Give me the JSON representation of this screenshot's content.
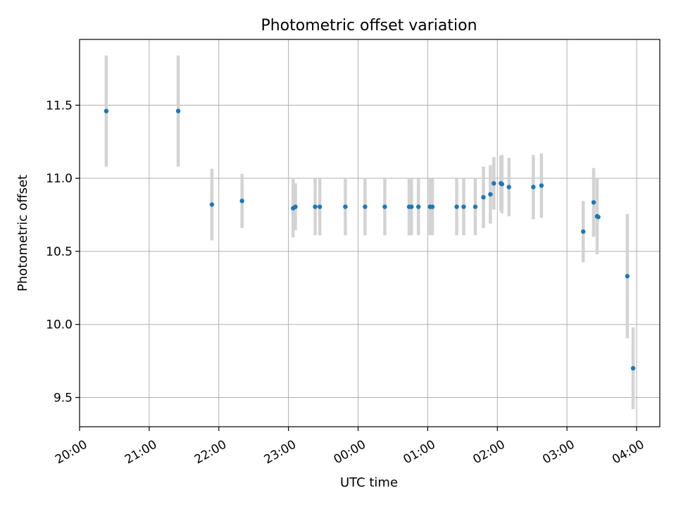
{
  "chart_data": {
    "type": "scatter",
    "title": "Photometric offset variation",
    "xlabel": "UTC time",
    "ylabel": "Photometric offset",
    "x_tick_labels": [
      "20:00",
      "21:00",
      "22:00",
      "23:00",
      "00:00",
      "01:00",
      "02:00",
      "03:00",
      "04:00"
    ],
    "y_tick_labels": [
      "9.5",
      "10.0",
      "10.5",
      "11.0",
      "11.5"
    ],
    "xlim": [
      "20:00",
      "04:20"
    ],
    "ylim": [
      9.3,
      11.95
    ],
    "grid": true,
    "marker_color": "#1f77b4",
    "errorbar_color": "#d3d3d3",
    "points": [
      {
        "x": "20:23",
        "y": 11.46,
        "err": 0.38
      },
      {
        "x": "21:25",
        "y": 11.46,
        "err": 0.38
      },
      {
        "x": "21:54",
        "y": 10.82,
        "err": 0.245
      },
      {
        "x": "22:20",
        "y": 10.845,
        "err": 0.185
      },
      {
        "x": "23:04",
        "y": 10.795,
        "err": 0.2
      },
      {
        "x": "23:06",
        "y": 10.805,
        "err": 0.16
      },
      {
        "x": "23:23",
        "y": 10.805,
        "err": 0.195
      },
      {
        "x": "23:27",
        "y": 10.805,
        "err": 0.195
      },
      {
        "x": "23:49",
        "y": 10.805,
        "err": 0.195
      },
      {
        "x": "00:06",
        "y": 10.805,
        "err": 0.195
      },
      {
        "x": "00:23",
        "y": 10.805,
        "err": 0.195
      },
      {
        "x": "00:44",
        "y": 10.805,
        "err": 0.195
      },
      {
        "x": "00:46",
        "y": 10.805,
        "err": 0.195
      },
      {
        "x": "00:52",
        "y": 10.805,
        "err": 0.195
      },
      {
        "x": "01:02",
        "y": 10.805,
        "err": 0.195
      },
      {
        "x": "01:04",
        "y": 10.805,
        "err": 0.195
      },
      {
        "x": "01:25",
        "y": 10.805,
        "err": 0.195
      },
      {
        "x": "01:31",
        "y": 10.805,
        "err": 0.195
      },
      {
        "x": "01:41",
        "y": 10.805,
        "err": 0.195
      },
      {
        "x": "01:48",
        "y": 10.87,
        "err": 0.21
      },
      {
        "x": "01:54",
        "y": 10.89,
        "err": 0.2
      },
      {
        "x": "01:57",
        "y": 10.965,
        "err": 0.18
      },
      {
        "x": "02:03",
        "y": 10.965,
        "err": 0.19
      },
      {
        "x": "02:04",
        "y": 10.96,
        "err": 0.2
      },
      {
        "x": "02:10",
        "y": 10.94,
        "err": 0.2
      },
      {
        "x": "02:31",
        "y": 10.94,
        "err": 0.22
      },
      {
        "x": "02:38",
        "y": 10.95,
        "err": 0.22
      },
      {
        "x": "03:14",
        "y": 10.635,
        "err": 0.21
      },
      {
        "x": "03:23",
        "y": 10.835,
        "err": 0.235
      },
      {
        "x": "03:26",
        "y": 10.74,
        "err": 0.26
      },
      {
        "x": "03:27",
        "y": 10.735,
        "err": 0.0
      },
      {
        "x": "03:52",
        "y": 10.33,
        "err": 0.425
      },
      {
        "x": "03:57",
        "y": 9.7,
        "err": 0.28
      }
    ]
  }
}
